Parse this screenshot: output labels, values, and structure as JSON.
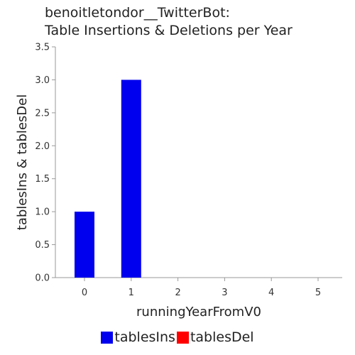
{
  "chart_data": {
    "type": "bar",
    "title_line1": "benoitletondor__TwitterBot:",
    "title_line2": "Table Insertions & Deletions per Year",
    "xlabel": "runningYearFromV0",
    "ylabel": "tablesIns & tablesDel",
    "categories": [
      "0",
      "1",
      "2",
      "3",
      "4",
      "5"
    ],
    "yticks": [
      "0.0",
      "0.5",
      "1.0",
      "1.5",
      "2.0",
      "2.5",
      "3.0",
      "3.5"
    ],
    "ylim": [
      0,
      3.5
    ],
    "series": [
      {
        "name": "tablesIns",
        "color": "#0000ee",
        "values": [
          1,
          3,
          0,
          0,
          0,
          0
        ]
      },
      {
        "name": "tablesDel",
        "color": "#ff0000",
        "values": [
          0,
          0,
          0,
          0,
          0,
          0
        ]
      }
    ],
    "legend_placement": "bottom-center",
    "grid": false
  }
}
